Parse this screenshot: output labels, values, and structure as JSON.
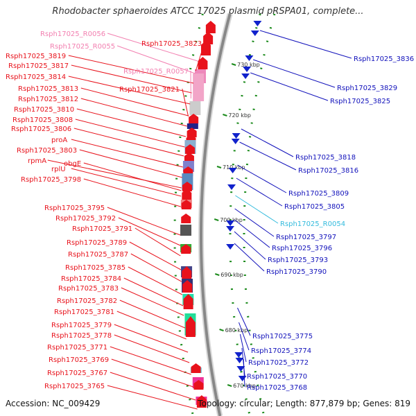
{
  "title": "Rhodobacter sphaeroides ATCC 17025 plasmid pRSPA01, complete...",
  "footer": {
    "accession": "Accession: NC_009429",
    "topology": "Topology: circular; Length: 877,879 bp; Genes: 819"
  },
  "colors": {
    "red_label": "#e8121b",
    "blue_label": "#1111bb",
    "pink_label": "#f27fb0",
    "cyan_label": "#33bbdd",
    "backbone": "#888888",
    "tick": "#1a8a1a"
  },
  "ticks": [
    "730 kbp",
    "720 kbp",
    "710 kbp",
    "700 kbp",
    "690 kbp",
    "680 kbp",
    "670 kbp"
  ],
  "left_labels": [
    {
      "text": "Rsph17025_R0056",
      "color": "pink"
    },
    {
      "text": "Rsph17025_R0055",
      "color": "pink"
    },
    {
      "text": "Rsph17025_3823",
      "color": "red"
    },
    {
      "text": "Rsph17025_3819",
      "color": "red"
    },
    {
      "text": "Rsph17025_3817",
      "color": "red"
    },
    {
      "text": "Rsph17025_R0057",
      "color": "pink"
    },
    {
      "text": "Rsph17025_3814",
      "color": "red"
    },
    {
      "text": "Rsph17025_3821",
      "color": "red"
    },
    {
      "text": "Rsph17025_3813",
      "color": "red"
    },
    {
      "text": "Rsph17025_3812",
      "color": "red"
    },
    {
      "text": "Rsph17025_3810",
      "color": "red"
    },
    {
      "text": "Rsph17025_3808",
      "color": "red"
    },
    {
      "text": "Rsph17025_3806",
      "color": "red"
    },
    {
      "text": "proA",
      "color": "red"
    },
    {
      "text": "Rsph17025_3803",
      "color": "red"
    },
    {
      "text": "rpmA",
      "color": "red"
    },
    {
      "text": "obgE",
      "color": "red"
    },
    {
      "text": "rplU",
      "color": "red"
    },
    {
      "text": "Rsph17025_3798",
      "color": "red"
    },
    {
      "text": "Rsph17025_3795",
      "color": "red"
    },
    {
      "text": "Rsph17025_3792",
      "color": "red"
    },
    {
      "text": "Rsph17025_3791",
      "color": "red"
    },
    {
      "text": "Rsph17025_3789",
      "color": "red"
    },
    {
      "text": "Rsph17025_3787",
      "color": "red"
    },
    {
      "text": "Rsph17025_3785",
      "color": "red"
    },
    {
      "text": "Rsph17025_3784",
      "color": "red"
    },
    {
      "text": "Rsph17025_3783",
      "color": "red"
    },
    {
      "text": "Rsph17025_3782",
      "color": "red"
    },
    {
      "text": "Rsph17025_3781",
      "color": "red"
    },
    {
      "text": "Rsph17025_3779",
      "color": "red"
    },
    {
      "text": "Rsph17025_3778",
      "color": "red"
    },
    {
      "text": "Rsph17025_3771",
      "color": "red"
    },
    {
      "text": "Rsph17025_3769",
      "color": "red"
    },
    {
      "text": "Rsph17025_3767",
      "color": "red"
    },
    {
      "text": "Rsph17025_3765",
      "color": "red"
    }
  ],
  "right_labels": [
    {
      "text": "Rsph17025_3836",
      "color": "blue"
    },
    {
      "text": "Rsph17025_3829",
      "color": "blue"
    },
    {
      "text": "Rsph17025_3825",
      "color": "blue"
    },
    {
      "text": "Rsph17025_3818",
      "color": "blue"
    },
    {
      "text": "Rsph17025_3816",
      "color": "blue"
    },
    {
      "text": "Rsph17025_3809",
      "color": "blue"
    },
    {
      "text": "Rsph17025_3805",
      "color": "blue"
    },
    {
      "text": "Rsph17025_R0054",
      "color": "cyan"
    },
    {
      "text": "Rsph17025_3797",
      "color": "blue"
    },
    {
      "text": "Rsph17025_3796",
      "color": "blue"
    },
    {
      "text": "Rsph17025_3793",
      "color": "blue"
    },
    {
      "text": "Rsph17025_3790",
      "color": "blue"
    },
    {
      "text": "Rsph17025_3775",
      "color": "blue"
    },
    {
      "text": "Rsph17025_3774",
      "color": "blue"
    },
    {
      "text": "Rsph17025_3772",
      "color": "blue"
    },
    {
      "text": "Rsph17025_3770",
      "color": "blue"
    },
    {
      "text": "Rsph17025_3768",
      "color": "blue"
    }
  ]
}
